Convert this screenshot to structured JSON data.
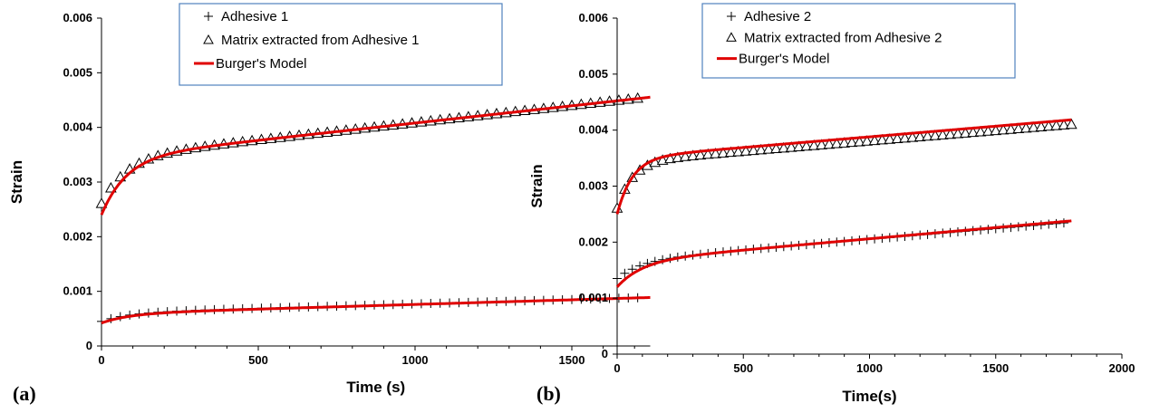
{
  "chart_data": [
    {
      "type": "scatter",
      "panel_label": "(a)",
      "xlabel": "Time (s)",
      "ylabel": "Strain",
      "xlim": [
        0,
        1750
      ],
      "ylim": [
        0,
        0.006
      ],
      "xticks": [
        0,
        500,
        1000,
        1500
      ],
      "xtick_labels": [
        "0",
        "500",
        "1000",
        "1500"
      ],
      "yticks": [
        0,
        0.001,
        0.002,
        0.003,
        0.004,
        0.005,
        0.006
      ],
      "ytick_labels": [
        "0",
        "0.001",
        "0.002",
        "0.003",
        "0.004",
        "0.005",
        "0.006"
      ],
      "grid": false,
      "legend_position": "top-right",
      "series": [
        {
          "name": "Adhesive 1",
          "marker": "plus",
          "color": "#000000",
          "t_max": 1730,
          "step": 30,
          "fn": "burgers",
          "eps0": 0.00045,
          "a": 0.00016,
          "tau": 90,
          "b": 1.6e-07
        },
        {
          "name": "Matrix extracted from Adhesive 1",
          "marker": "triangle",
          "color": "#000000",
          "t_max": 1730,
          "step": 30,
          "fn": "burgers",
          "eps0": 0.0026,
          "a": 0.00085,
          "tau": 80,
          "b": 6.3e-07
        },
        {
          "name": "Burger's Model",
          "marker": "line",
          "color": "#e00000",
          "fits": [
            {
              "t_max": 1750,
              "eps0": 0.00042,
              "a": 0.00017,
              "tau": 90,
              "b": 1.7e-07
            },
            {
              "t_max": 1750,
              "eps0": 0.0024,
              "a": 0.00105,
              "tau": 80,
              "b": 6.3e-07
            }
          ]
        }
      ]
    },
    {
      "type": "scatter",
      "panel_label": "(b)",
      "xlabel": "Time(s)",
      "ylabel": "Strain",
      "xlim": [
        0,
        2000
      ],
      "ylim": [
        0,
        0.006
      ],
      "xticks": [
        0,
        500,
        1000,
        1500,
        2000
      ],
      "xtick_labels": [
        "0",
        "500",
        "1000",
        "1500",
        "2000"
      ],
      "yticks": [
        0,
        0.001,
        0.002,
        0.003,
        0.004,
        0.005,
        0.006
      ],
      "ytick_labels": [
        "0",
        "0.001",
        "0.002",
        "0.003",
        "0.004",
        "0.005",
        "0.006"
      ],
      "grid": false,
      "legend_position": "top-right",
      "series": [
        {
          "name": "Adhesive 2",
          "marker": "plus",
          "color": "#000000",
          "t_max": 1780,
          "step": 30,
          "fn": "burgers",
          "eps0": 0.00135,
          "a": 0.00032,
          "tau": 100,
          "b": 3.8e-07
        },
        {
          "name": "Matrix extracted from Adhesive 2",
          "marker": "triangle",
          "color": "#000000",
          "t_max": 1800,
          "step": 30,
          "fn": "burgers",
          "eps0": 0.0026,
          "a": 0.00083,
          "tau": 60,
          "b": 3.7e-07
        },
        {
          "name": "Burger's Model",
          "marker": "line",
          "color": "#e00000",
          "fits": [
            {
              "t_max": 1800,
              "eps0": 0.0012,
              "a": 0.00046,
              "tau": 100,
              "b": 4e-07
            },
            {
              "t_max": 1800,
              "eps0": 0.0025,
              "a": 0.001,
              "tau": 60,
              "b": 3.8e-07
            }
          ]
        }
      ]
    }
  ]
}
